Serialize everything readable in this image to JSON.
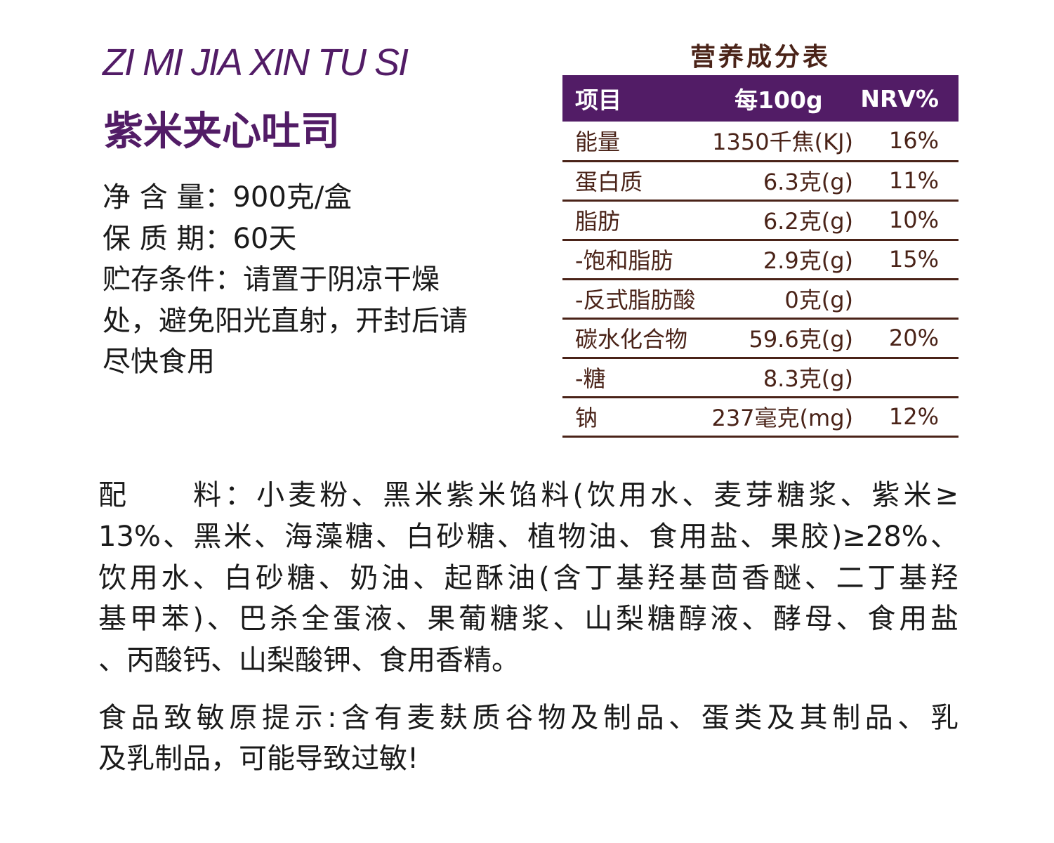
{
  "product": {
    "pinyin": "ZI MI JIA XIN TU SI",
    "name": "紫米夹心吐司"
  },
  "info": [
    {
      "label": "净 含 量：",
      "value": "900克/盒"
    },
    {
      "label": "保 质 期：",
      "value": "60天"
    },
    {
      "label": "贮存条件：",
      "value": "请置于阴凉干燥"
    }
  ],
  "info_cont": [
    "处，避免阳光直射，开封后请",
    "尽快食用"
  ],
  "nutrition": {
    "title": "营养成分表",
    "headers": [
      "项目",
      "每100g",
      "NRV%"
    ],
    "rows": [
      [
        "能量",
        "1350千焦(KJ)",
        "16%"
      ],
      [
        "蛋白质",
        "6.3克(g)",
        "11%"
      ],
      [
        "脂肪",
        "6.2克(g)",
        "10%"
      ],
      [
        "-饱和脂肪",
        "2.9克(g)",
        "15%"
      ],
      [
        "-反式脂肪酸",
        "0克(g)",
        ""
      ],
      [
        "碳水化合物",
        "59.6克(g)",
        "20%"
      ],
      [
        "-糖",
        "8.3克(g)",
        ""
      ],
      [
        "钠",
        "237毫克(mg)",
        "12%"
      ]
    ]
  },
  "ingredients": [
    "配　　料：小麦粉、黑米紫米馅料(饮用水、麦芽糖浆、紫米≥",
    "13%、黑米、海藻糖、白砂糖、植物油、食用盐、果胶)≥28%、",
    "饮用水、白砂糖、奶油、起酥油(含丁基羟基茴香醚、二丁基羟",
    "基甲苯)、巴杀全蛋液、果葡糖浆、山梨糖醇液、酵母、食用盐",
    "、丙酸钙、山梨酸钾、食用香精。"
  ],
  "allergy": [
    "食品致敏原提示:含有麦麸质谷物及制品、蛋类及其制品、乳",
    "及乳制品，可能导致过敏!"
  ],
  "colors": {
    "brand": "#521c66",
    "table_text": "#4a2318"
  }
}
